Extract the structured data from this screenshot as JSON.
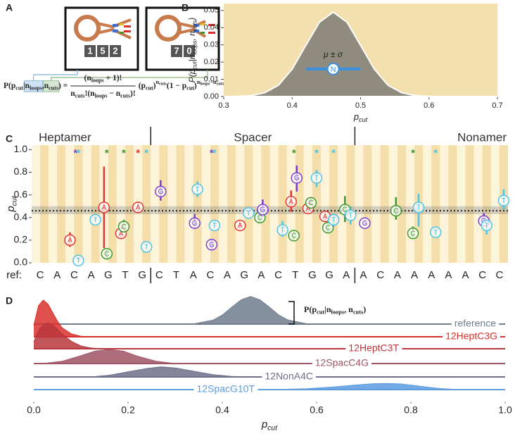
{
  "panel_labels": [
    "A",
    "B",
    "C",
    "D"
  ],
  "panel_a": {
    "counters": [
      [
        "1",
        "5",
        "2"
      ],
      [
        "7",
        "0"
      ]
    ],
    "formula": {
      "lhs": [
        {
          "text": "P(p"
        },
        {
          "text": "cut",
          "pos": "sub"
        },
        {
          "text": "|"
        },
        {
          "text": "n",
          "highlight": "#cfe2f3"
        },
        {
          "text": "loops",
          "pos": "sub",
          "highlight": "#cfe2f3"
        },
        {
          "text": ","
        },
        {
          "text": "n",
          "highlight": "#d3e8cf"
        },
        {
          "text": "cuts",
          "pos": "sub",
          "highlight": "#d3e8cf"
        },
        {
          "text": ") ="
        }
      ],
      "numerator": [
        {
          "text": "(n"
        },
        {
          "text": "loops",
          "pos": "sub"
        },
        {
          "text": " + 1)!"
        }
      ],
      "denominator": [
        {
          "text": "n"
        },
        {
          "text": "cuts",
          "pos": "sub"
        },
        {
          "text": "!(n"
        },
        {
          "text": "loops",
          "pos": "sub"
        },
        {
          "text": " − n"
        },
        {
          "text": "cuts",
          "pos": "sub"
        },
        {
          "text": ")!"
        }
      ],
      "rhs": [
        {
          "text": "(p"
        },
        {
          "text": "cut",
          "pos": "sub"
        },
        {
          "text": ")"
        },
        {
          "text": "n",
          "pos": "sup"
        },
        {
          "text": "cuts",
          "pos": "supsub"
        },
        {
          "text": "(1 − p",
          "pos": "base"
        },
        {
          "text": "cut",
          "pos": "sub"
        },
        {
          "text": ")"
        },
        {
          "text": "n",
          "pos": "sup"
        },
        {
          "text": "loops",
          "pos": "supsub"
        },
        {
          "text": "−n",
          "pos": "sup"
        },
        {
          "text": "cuts",
          "pos": "supsub"
        }
      ]
    }
  },
  "chart_data": [
    {
      "type": "density",
      "x": [
        0.3,
        0.32,
        0.34,
        0.36,
        0.38,
        0.4,
        0.42,
        0.44,
        0.46,
        0.48,
        0.5,
        0.52,
        0.54,
        0.56,
        0.58,
        0.6,
        0.62,
        0.64,
        0.66,
        0.68,
        0.7
      ],
      "values": [
        0,
        0.0001,
        0.0005,
        0.0022,
        0.0066,
        0.0159,
        0.0297,
        0.0432,
        0.049,
        0.0432,
        0.0297,
        0.0159,
        0.0066,
        0.0022,
        0.0005,
        0.0001,
        0,
        0,
        0,
        0,
        0
      ],
      "color": "#8f8b7f",
      "background": "#f4dfae",
      "xlim": [
        0.3,
        0.7
      ],
      "xticks": [
        0.3,
        0.4,
        0.5,
        0.6,
        0.7
      ],
      "ylim": [
        0,
        0.054
      ],
      "yticks": [
        {
          "value": 0,
          "label": "0.00"
        },
        0.01,
        0.02,
        0.03,
        0.04,
        0.05
      ],
      "xlabel": [
        {
          "text": "p"
        },
        {
          "text": "cut",
          "pos": "sub"
        }
      ],
      "ylabel": [
        {
          "text": "P(p"
        },
        {
          "text": "cut",
          "pos": "sub"
        },
        {
          "text": "|n"
        },
        {
          "text": "loops",
          "pos": "sub"
        },
        {
          "text": ", n"
        },
        {
          "text": "cuts",
          "pos": "sub"
        },
        {
          "text": ")"
        }
      ],
      "summary": {
        "mean": 0.46,
        "low": 0.42,
        "high": 0.5,
        "y": 0.016,
        "label": "N",
        "annotation": "μ ± σ",
        "color": "#3a8fe0"
      }
    },
    {
      "type": "mutation-scatter",
      "sections": [
        {
          "name": "Heptamer",
          "length": 7
        },
        {
          "name": "Spacer",
          "length": 12
        },
        {
          "name": "Nonamer",
          "length": 9
        }
      ],
      "ref_label": "ref:",
      "ref": [
        "C",
        "A",
        "C",
        "A",
        "G",
        "T",
        "G",
        "C",
        "T",
        "A",
        "C",
        "A",
        "G",
        "A",
        "C",
        "T",
        "G",
        "G",
        "A",
        "A",
        "C",
        "A",
        "A",
        "A",
        "A",
        "A",
        "C",
        "C"
      ],
      "ylim": [
        0,
        1.04
      ],
      "yticks": [
        {
          "value": 0,
          "label": "0.0"
        },
        0.2,
        0.4,
        0.6,
        0.8,
        {
          "value": 1,
          "label": "1.0"
        }
      ],
      "ylabel": [
        {
          "text": "p"
        },
        {
          "text": "cut",
          "pos": "sub"
        }
      ],
      "base_colors": {
        "A": "#e23a2e",
        "C": "#3d9a2c",
        "G": "#7a3fd1",
        "T": "#4cc4e8"
      },
      "reference": {
        "mean": 0.46,
        "low": 0.43,
        "high": 0.5
      },
      "points": [
        {
          "pos": 2,
          "base": "T",
          "value": 0.02,
          "low": 0,
          "high": 0.05
        },
        {
          "pos": 2,
          "base": "A",
          "value": 0.2,
          "low": 0.14,
          "high": 0.27
        },
        {
          "pos": 3,
          "base": "T",
          "value": 0.38,
          "low": 0.36,
          "high": 0.4
        },
        {
          "pos": 4,
          "base": "A",
          "value": 0.49,
          "low": 0.13,
          "high": 0.85
        },
        {
          "pos": 4,
          "base": "C",
          "value": 0.08,
          "low": 0.03,
          "high": 0.12
        },
        {
          "pos": 5,
          "base": "A",
          "value": 0.26,
          "low": 0.22,
          "high": 0.3
        },
        {
          "pos": 5,
          "base": "C",
          "value": 0.32,
          "low": 0.27,
          "high": 0.38
        },
        {
          "pos": 6,
          "base": "T",
          "value": 0.14,
          "low": 0.12,
          "high": 0.16
        },
        {
          "pos": 6,
          "base": "A",
          "value": 0.49,
          "low": 0.44,
          "high": 0.54
        },
        {
          "pos": 7,
          "base": "G",
          "value": 0.63,
          "low": 0.55,
          "high": 0.73
        },
        {
          "pos": 9,
          "base": "G",
          "value": 0.35,
          "low": 0.3,
          "high": 0.43
        },
        {
          "pos": 9,
          "base": "T",
          "value": 0.65,
          "low": 0.58,
          "high": 0.72
        },
        {
          "pos": 10,
          "base": "G",
          "value": 0.16,
          "low": 0.12,
          "high": 0.2
        },
        {
          "pos": 10,
          "base": "T",
          "value": 0.33,
          "low": 0.3,
          "high": 0.37
        },
        {
          "pos": 12,
          "base": "A",
          "value": 0.33,
          "low": 0.3,
          "high": 0.37
        },
        {
          "pos": 12,
          "base": "T",
          "value": 0.44,
          "low": 0.42,
          "high": 0.46
        },
        {
          "pos": 13,
          "base": "C",
          "value": 0.4,
          "low": 0.35,
          "high": 0.45
        },
        {
          "pos": 13,
          "base": "G",
          "value": 0.47,
          "low": 0.4,
          "high": 0.56
        },
        {
          "pos": 14,
          "base": "T",
          "value": 0.29,
          "low": 0.23,
          "high": 0.37
        },
        {
          "pos": 15,
          "base": "C",
          "value": 0.24,
          "low": 0.2,
          "high": 0.28
        },
        {
          "pos": 15,
          "base": "A",
          "value": 0.54,
          "low": 0.45,
          "high": 0.64
        },
        {
          "pos": 15,
          "base": "G",
          "value": 0.75,
          "low": 0.63,
          "high": 0.86
        },
        {
          "pos": 16,
          "base": "A",
          "value": 0.48,
          "low": 0.44,
          "high": 0.52
        },
        {
          "pos": 16,
          "base": "C",
          "value": 0.53,
          "low": 0.48,
          "high": 0.58
        },
        {
          "pos": 16,
          "base": "T",
          "value": 0.75,
          "low": 0.67,
          "high": 0.82
        },
        {
          "pos": 17,
          "base": "A",
          "value": 0.41,
          "low": 0.36,
          "high": 0.46
        },
        {
          "pos": 17,
          "base": "C",
          "value": 0.31,
          "low": 0.26,
          "high": 0.36
        },
        {
          "pos": 17,
          "base": "T",
          "value": 0.38,
          "low": 0.32,
          "high": 0.43
        },
        {
          "pos": 18,
          "base": "C",
          "value": 0.47,
          "low": 0.36,
          "high": 0.59
        },
        {
          "pos": 18,
          "base": "T",
          "value": 0.42,
          "low": 0.34,
          "high": 0.5
        },
        {
          "pos": 19,
          "base": "G",
          "value": 0.35,
          "low": 0.33,
          "high": 0.37
        },
        {
          "pos": 21,
          "base": "C",
          "value": 0.46,
          "low": 0.38,
          "high": 0.58
        },
        {
          "pos": 22,
          "base": "C",
          "value": 0.26,
          "low": 0.22,
          "high": 0.32
        },
        {
          "pos": 22,
          "base": "T",
          "value": 0.49,
          "low": 0.32,
          "high": 0.61
        },
        {
          "pos": 23,
          "base": "T",
          "value": 0.27,
          "low": 0.24,
          "high": 0.3
        },
        {
          "pos": 26,
          "base": "G",
          "value": 0.37,
          "low": 0.32,
          "high": 0.44
        },
        {
          "pos": 26,
          "base": "T",
          "value": 0.33,
          "low": 0.25,
          "high": 0.39
        },
        {
          "pos": 27,
          "base": "T",
          "value": 0.55,
          "low": 0.47,
          "high": 0.65
        }
      ],
      "star_symbol": "*",
      "stars": [
        {
          "pos": 2,
          "base": "G"
        },
        {
          "pos": 2,
          "base": "T"
        },
        {
          "pos": 4,
          "base": "C"
        },
        {
          "pos": 5,
          "base": "C"
        },
        {
          "pos": 6,
          "base": "A"
        },
        {
          "pos": 6,
          "base": "T"
        },
        {
          "pos": 10,
          "base": "G"
        },
        {
          "pos": 10,
          "base": "T"
        },
        {
          "pos": 15,
          "base": "C"
        },
        {
          "pos": 16,
          "base": "T"
        },
        {
          "pos": 17,
          "base": "T"
        },
        {
          "pos": 22,
          "base": "C"
        },
        {
          "pos": 23,
          "base": "T"
        }
      ]
    },
    {
      "type": "ridgeline",
      "series": [
        {
          "name": "reference",
          "color": "#6f7d8c",
          "x": [
            0.3,
            0.34,
            0.38,
            0.4,
            0.42,
            0.44,
            0.46,
            0.48,
            0.5,
            0.52,
            0.54,
            0.58,
            0.62
          ],
          "values": [
            0,
            0.05,
            0.7,
            1.6,
            3.0,
            4.3,
            4.9,
            4.3,
            3.0,
            1.6,
            0.7,
            0.05,
            0
          ]
        },
        {
          "name": "12HeptC3G",
          "color": "#d9302b",
          "x": [
            0,
            0.01,
            0.02,
            0.03,
            0.04,
            0.05,
            0.06,
            0.08,
            0.1,
            0.12
          ],
          "values": [
            2,
            5.5,
            6.5,
            5.8,
            4.3,
            2.8,
            1.6,
            0.5,
            0.1,
            0
          ]
        },
        {
          "name": "12HeptC3T",
          "color": "#b8363d",
          "x": [
            0,
            0.01,
            0.02,
            0.03,
            0.04,
            0.05,
            0.06,
            0.08,
            0.1,
            0.12,
            0.14
          ],
          "values": [
            1.2,
            3.2,
            4.2,
            4.6,
            4.2,
            3.5,
            2.6,
            1.3,
            0.5,
            0.15,
            0
          ]
        },
        {
          "name": "12SpacC4G",
          "color": "#a05466",
          "x": [
            0.02,
            0.06,
            0.1,
            0.13,
            0.16,
            0.19,
            0.22,
            0.26,
            0.3
          ],
          "values": [
            0,
            0.4,
            1.4,
            2.2,
            2.5,
            2.2,
            1.3,
            0.4,
            0
          ]
        },
        {
          "name": "12NonA4C",
          "color": "#6e6f88",
          "x": [
            0.12,
            0.16,
            0.2,
            0.24,
            0.27,
            0.3,
            0.34,
            0.38,
            0.42,
            0.46
          ],
          "values": [
            0,
            0.3,
            0.9,
            1.5,
            1.8,
            1.6,
            1.0,
            0.4,
            0.1,
            0
          ]
        },
        {
          "name": "12SpacG10T",
          "color": "#5b9be0",
          "x": [
            0.5,
            0.58,
            0.64,
            0.68,
            0.72,
            0.75,
            0.78,
            0.82,
            0.86,
            0.9
          ],
          "values": [
            0,
            0.15,
            0.5,
            0.8,
            1.05,
            1.1,
            1.0,
            0.6,
            0.2,
            0
          ]
        }
      ],
      "xlim": [
        0,
        1
      ],
      "xticks": [
        {
          "value": 0,
          "label": "0.0"
        },
        0.2,
        0.4,
        0.6,
        0.8,
        {
          "value": 1,
          "label": "1.0"
        }
      ],
      "xlabel": [
        {
          "text": "p"
        },
        {
          "text": "cut",
          "pos": "sub"
        }
      ],
      "annotation": [
        {
          "text": "P(p"
        },
        {
          "text": "cut",
          "pos": "sub"
        },
        {
          "text": "|n"
        },
        {
          "text": "loops",
          "pos": "sub"
        },
        {
          "text": ", n"
        },
        {
          "text": "cuts",
          "pos": "sub"
        },
        {
          "text": ")"
        }
      ]
    }
  ]
}
